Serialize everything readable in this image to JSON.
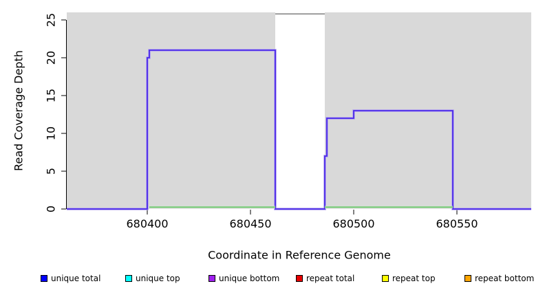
{
  "figure": {
    "xlabel": "Coordinate in Reference Genome",
    "ylabel": "Read Coverage Depth"
  },
  "chart_data": {
    "type": "line",
    "subtype": "step-coverage",
    "title": "",
    "xlabel": "Coordinate in Reference Genome",
    "ylabel": "Read Coverage Depth",
    "xlim": [
      680361,
      680586
    ],
    "ylim": [
      0,
      26
    ],
    "x_ticks": [
      680400,
      680450,
      680500,
      680550
    ],
    "y_ticks": [
      0,
      5,
      10,
      15,
      20,
      25
    ],
    "grid": false,
    "legend_position": "bottom",
    "background_regions": [
      {
        "kind": "unique",
        "start": 680361,
        "end": 680462,
        "color": "#d9d9d9"
      },
      {
        "kind": "repeat",
        "start": 680462,
        "end": 680486,
        "color": "#ffffff"
      },
      {
        "kind": "unique",
        "start": 680486,
        "end": 680586,
        "color": "#d9d9d9"
      }
    ],
    "series": [
      {
        "name": "unique coverage step line",
        "color": "#4a28e8",
        "halo": "#b3a3f0",
        "width": 1.8,
        "segments": [
          [
            [
              680361,
              0
            ],
            [
              680400,
              0
            ],
            [
              680400,
              20
            ],
            [
              680401,
              20
            ],
            [
              680401,
              21
            ],
            [
              680462,
              21
            ],
            [
              680462,
              0
            ],
            [
              680486,
              0
            ],
            [
              680486,
              7
            ],
            [
              680487,
              7
            ],
            [
              680487,
              12
            ],
            [
              680500,
              12
            ],
            [
              680500,
              13
            ],
            [
              680548,
              13
            ],
            [
              680548,
              0
            ],
            [
              680586,
              0
            ]
          ]
        ]
      },
      {
        "name": "zero coverage baseline",
        "color": "#5fbc5f",
        "halo": "#cfe9cf",
        "width": 1.5,
        "segments": [
          [
            [
              680401,
              0.25
            ],
            [
              680462,
              0.25
            ]
          ],
          [
            [
              680486,
              0.25
            ],
            [
              680548,
              0.25
            ]
          ]
        ]
      },
      {
        "name": "clipped repeat coverage",
        "color": "#9a9a9a",
        "halo": null,
        "width": 2,
        "segments": [
          [
            [
              680462,
              25.8
            ],
            [
              680486,
              25.8
            ]
          ]
        ]
      }
    ],
    "legend": [
      {
        "label": "unique total",
        "color": "#0000ff"
      },
      {
        "label": "unique top",
        "color": "#00ffff"
      },
      {
        "label": "unique bottom",
        "color": "#a020f0"
      },
      {
        "label": "repeat total",
        "color": "#e60000"
      },
      {
        "label": "repeat top",
        "color": "#ffff00"
      },
      {
        "label": "repeat bottom",
        "color": "#ffa500"
      }
    ]
  }
}
